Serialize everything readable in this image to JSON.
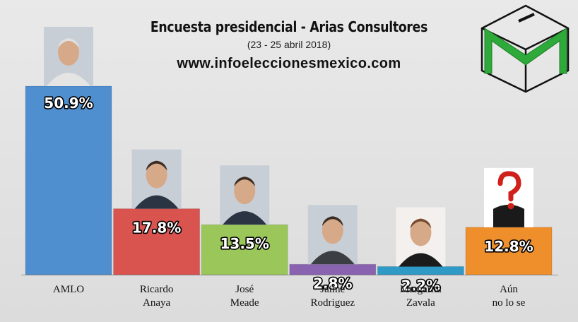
{
  "header": {
    "title": "Encuesta presidencial - Arias Consultores",
    "subtitle": "(23 - 25 abril 2018)",
    "website": "www.infoeleccionesmexico.com"
  },
  "logo": {
    "icon": "ballot-box-m-logo-icon",
    "color": "#2eaa3a"
  },
  "chart_data": {
    "type": "bar",
    "title": "Encuesta presidencial - Arias Consultores",
    "subtitle": "(23 - 25 abril 2018)",
    "categories": [
      "AMLO",
      "Ricardo\nAnaya",
      "José\nMeade",
      "Jaime\nRodriguez",
      "Margarita\nZavala",
      "Aún\nno lo se"
    ],
    "values": [
      50.9,
      17.8,
      13.5,
      2.8,
      2.2,
      12.8
    ],
    "value_labels": [
      "50.9%",
      "17.8%",
      "13.5%",
      "2.8%",
      "2.2%",
      "12.8%"
    ],
    "colors": [
      "#4f8fd0",
      "#d9534f",
      "#9bc75a",
      "#8a63b0",
      "#2f9ac6",
      "#ef8f2c"
    ],
    "ylim": [
      0,
      50.9
    ],
    "grid": false,
    "legend": "none",
    "xlabel": "",
    "ylabel": ""
  }
}
